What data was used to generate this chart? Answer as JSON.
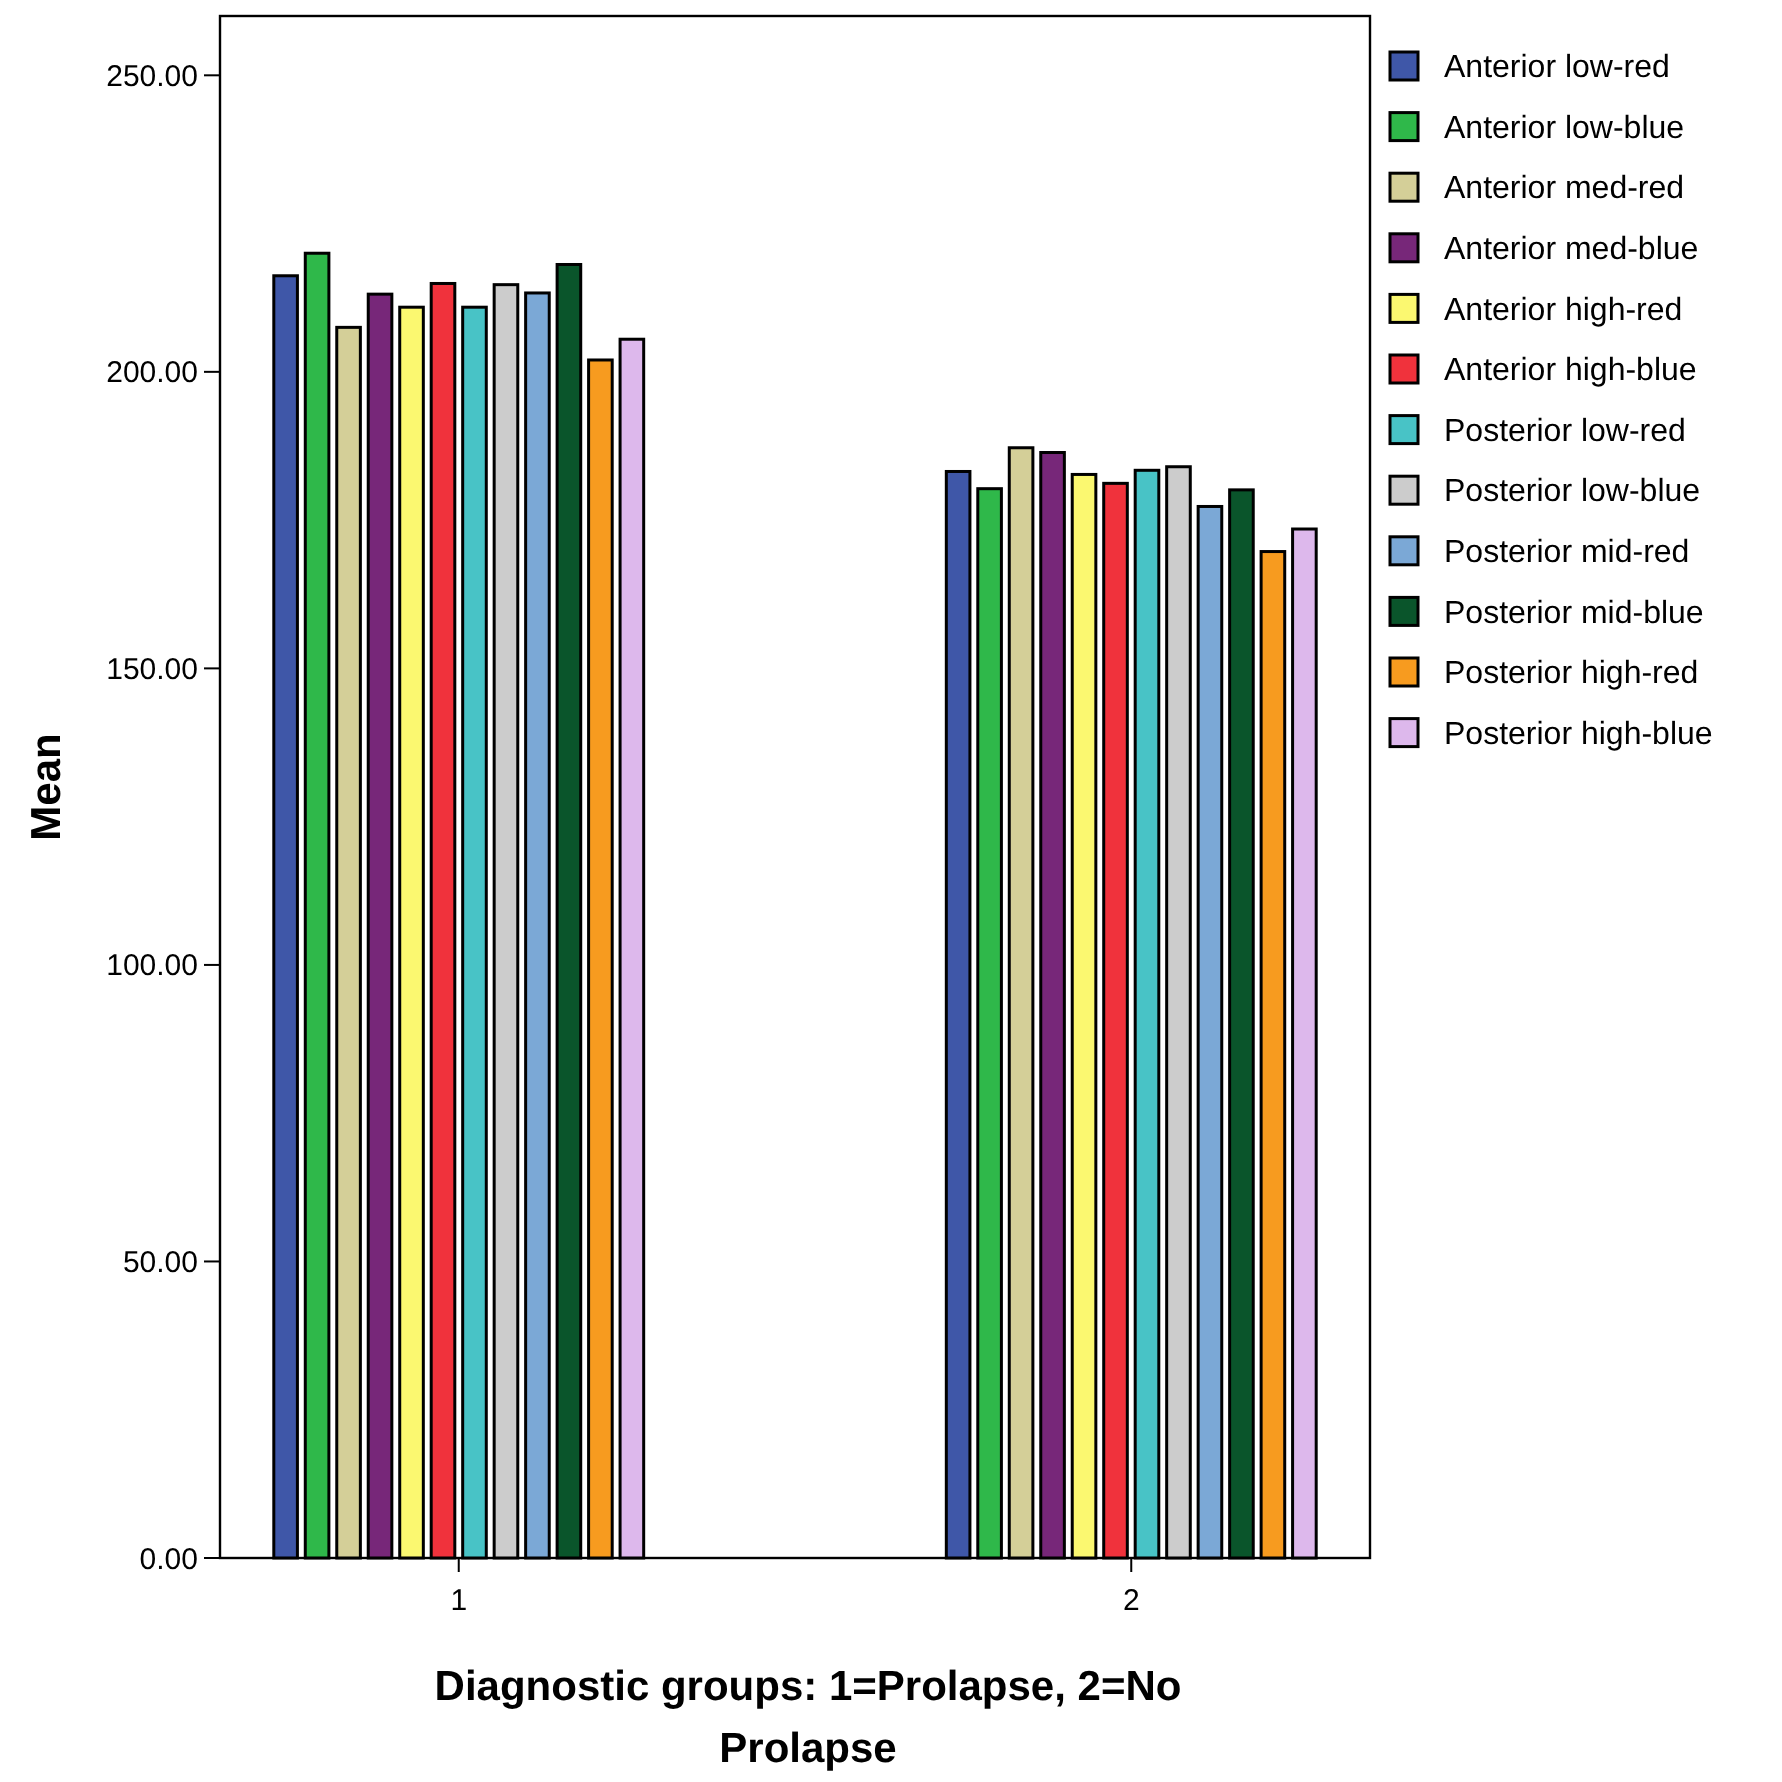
{
  "chart_data": {
    "type": "bar",
    "xlabel": "Diagnostic groups: 1=Prolapse, 2=No Prolapse",
    "ylabel": "Mean",
    "categories": [
      "1",
      "2"
    ],
    "ylim": [
      0,
      260
    ],
    "yticks": [
      {
        "value": 0,
        "label": "0.00"
      },
      {
        "value": 50,
        "label": "50.00"
      },
      {
        "value": 100,
        "label": "100.00"
      },
      {
        "value": 150,
        "label": "150.00"
      },
      {
        "value": 200,
        "label": "200.00"
      },
      {
        "value": 250,
        "label": "250.00"
      }
    ],
    "legend": "right",
    "grid": false,
    "series": [
      {
        "name": "Anterior low-red",
        "color": "#3f57a8",
        "values": [
          216.2,
          183.2
        ]
      },
      {
        "name": "Anterior low-blue",
        "color": "#2fb84a",
        "values": [
          220.0,
          180.3
        ]
      },
      {
        "name": "Anterior med-red",
        "color": "#d4cf98",
        "values": [
          207.5,
          187.2
        ]
      },
      {
        "name": "Anterior med-blue",
        "color": "#772779",
        "values": [
          213.1,
          186.4
        ]
      },
      {
        "name": "Anterior high-red",
        "color": "#fbf870",
        "values": [
          210.9,
          182.7
        ]
      },
      {
        "name": "Anterior high-blue",
        "color": "#f0323c",
        "values": [
          214.9,
          181.2
        ]
      },
      {
        "name": "Posterior low-red",
        "color": "#48c3c6",
        "values": [
          210.9,
          183.4
        ]
      },
      {
        "name": "Posterior low-blue",
        "color": "#cccccc",
        "values": [
          214.7,
          184.0
        ]
      },
      {
        "name": "Posterior mid-red",
        "color": "#7ba8d6",
        "values": [
          213.3,
          177.3
        ]
      },
      {
        "name": "Posterior mid-blue",
        "color": "#0a552b",
        "values": [
          218.1,
          180.1
        ]
      },
      {
        "name": "Posterior high-red",
        "color": "#f79b1f",
        "values": [
          202.0,
          169.7
        ]
      },
      {
        "name": "Posterior high-blue",
        "color": "#ddb8ec",
        "values": [
          205.5,
          173.5
        ]
      }
    ]
  }
}
